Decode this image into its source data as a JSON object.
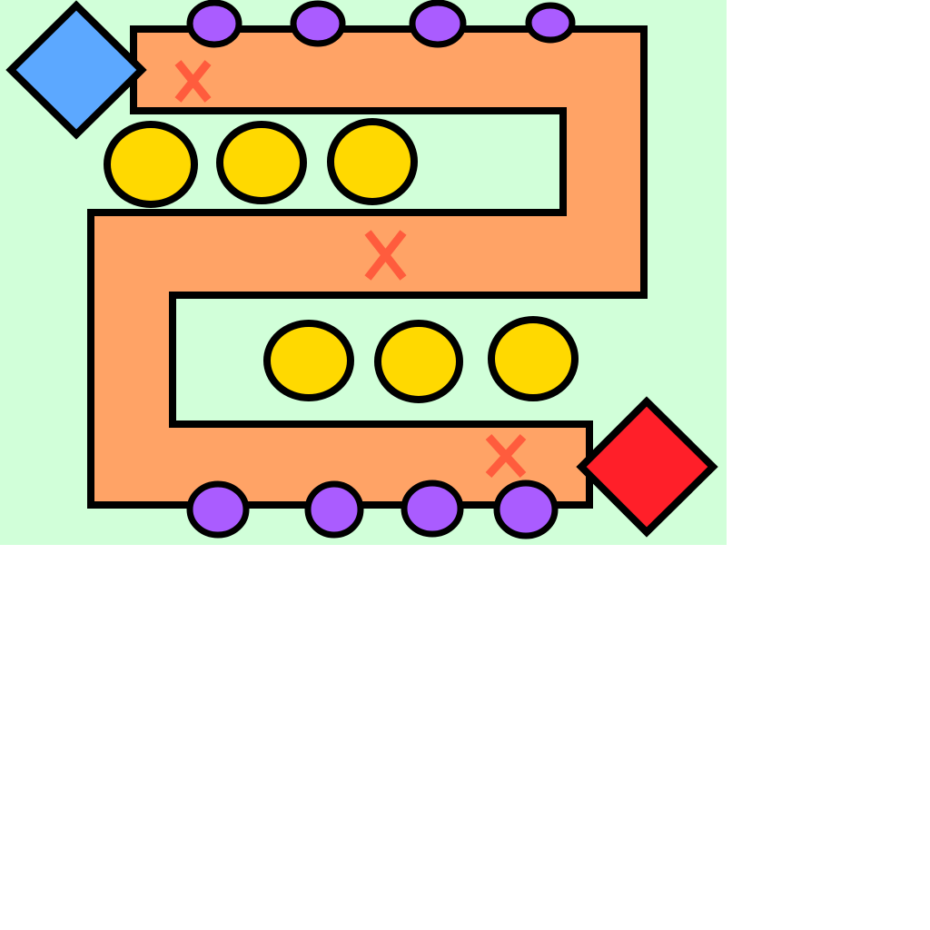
{
  "colors": {
    "background": "#d1ffd9",
    "path": "#ffa366",
    "outline": "#000000",
    "start": "#5ca8ff",
    "goal": "#ff1f29",
    "coin": "#ffd900",
    "enemy": "#aa5cff",
    "marker": "#ff5c3d"
  },
  "board": {
    "start": {
      "shape": "diamond",
      "icon": "start-diamond"
    },
    "goal": {
      "shape": "diamond",
      "icon": "goal-diamond"
    },
    "coins": {
      "count": 6
    },
    "enemies": {
      "count": 8
    },
    "markers": {
      "count": 3,
      "glyph": "×"
    }
  }
}
